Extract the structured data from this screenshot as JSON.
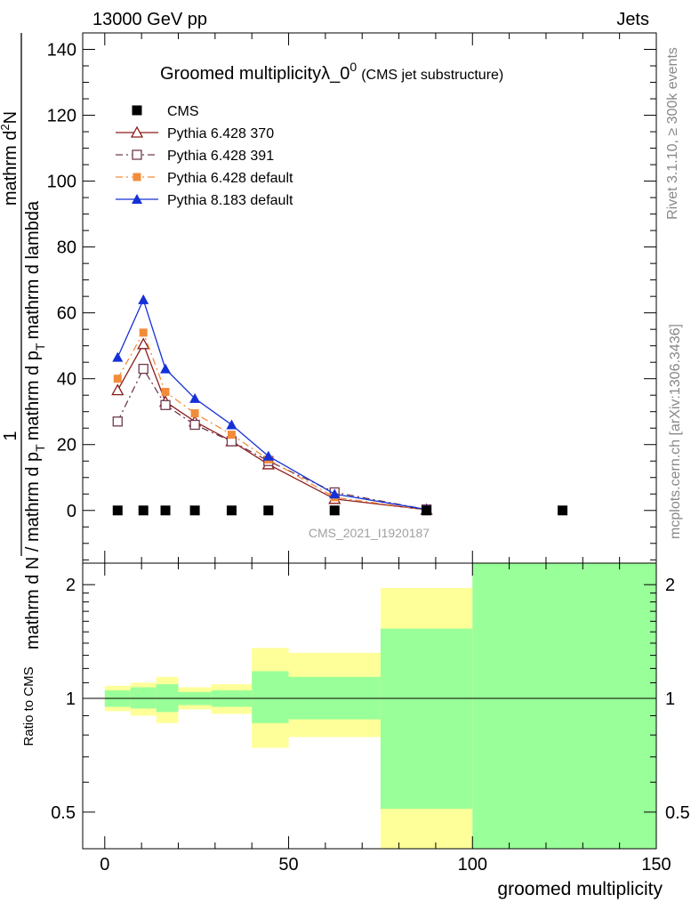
{
  "header": {
    "left": "13000 GeV pp",
    "right": "Jets"
  },
  "side_labels": {
    "top": "Rivet 3.1.10, ≥ 300k events",
    "bottom": "mcplots.cern.ch [arXiv:1306.3436]"
  },
  "chart_data": [
    {
      "type": "line",
      "title_main": "Groomed multiplicity",
      "title_lambda": "λ_0",
      "title_sup": "0",
      "title_paren": "(CMS jet substructure)",
      "ylabel": "1 / mathrm d N / mathrm d p_T mathrm d^2N / mathrm d p_T mathrm d lambda",
      "ylabel_numer_left": "1",
      "ylabel_left": "mathrm d N / mathrm d p",
      "ylabel_left_sub": "T",
      "ylabel_right_a": "mathrm d",
      "ylabel_right_sup": "2",
      "ylabel_right_b": "N",
      "ylabel_right_c": "mathrm d p",
      "ylabel_right_sub": "T",
      "ylabel_right_d": "mathrm d lambda",
      "xlim": [
        -6,
        150
      ],
      "ylim": [
        -16,
        145
      ],
      "yticks": [
        0,
        20,
        40,
        60,
        80,
        100,
        120,
        140
      ],
      "watermark": "CMS_2021_I1920187",
      "legend_position": "top-left",
      "x": [
        3.5,
        10.5,
        16.5,
        24.5,
        34.5,
        44.5,
        62.5,
        87.5,
        124.5
      ],
      "series": [
        {
          "name": "CMS",
          "color": "#000000",
          "marker": "square-filled",
          "line": "none",
          "x": [
            3.5,
            10.5,
            16.5,
            24.5,
            34.5,
            44.5,
            62.5,
            87.5,
            124.5
          ],
          "values": [
            0,
            0,
            0,
            0,
            0,
            0,
            0,
            0,
            0
          ]
        },
        {
          "name": "Pythia 6.428 370",
          "color": "#8b1a1a",
          "marker": "triangle-open",
          "line": "solid",
          "x": [
            3.5,
            10.5,
            16.5,
            24.5,
            34.5,
            44.5,
            62.5,
            87.5
          ],
          "values": [
            36.5,
            50.5,
            33,
            27,
            21,
            14,
            3.5,
            0.2
          ]
        },
        {
          "name": "Pythia 6.428 391",
          "color": "#6e3a4e",
          "marker": "square-open",
          "line": "dashdot",
          "x": [
            3.5,
            10.5,
            16.5,
            24.5,
            34.5,
            44.5,
            62.5,
            87.5
          ],
          "values": [
            27,
            43,
            32,
            26,
            21,
            15,
            5.5,
            0.3
          ]
        },
        {
          "name": "Pythia 6.428 default",
          "color": "#f28c3a",
          "marker": "square-filled",
          "line": "dashdot",
          "x": [
            3.5,
            10.5,
            16.5,
            24.5,
            34.5,
            44.5,
            62.5,
            87.5
          ],
          "values": [
            40,
            54,
            36,
            29.5,
            23,
            15.5,
            4,
            0.2
          ]
        },
        {
          "name": "Pythia 8.183 default",
          "color": "#1530d6",
          "marker": "triangle-filled",
          "line": "solid",
          "x": [
            3.5,
            10.5,
            16.5,
            24.5,
            34.5,
            44.5,
            62.5,
            87.5
          ],
          "values": [
            46.5,
            64,
            43,
            34,
            26,
            16.5,
            5,
            0.3
          ]
        }
      ]
    },
    {
      "type": "area",
      "ylabel": "Ratio to CMS",
      "xlabel": "groomed multiplicity",
      "xlim": [
        -6,
        150
      ],
      "xticks": [
        0,
        50,
        100,
        150
      ],
      "yticks": [
        0.5,
        1,
        2
      ],
      "yticklabels": [
        "0.5",
        "1",
        "2"
      ],
      "yscale": "log",
      "ylim": [
        0.4,
        2.28
      ],
      "reference_line": 1,
      "bins": [
        {
          "lo": 0,
          "hi": 7,
          "yellow": [
            0.925,
            1.08
          ],
          "green": [
            0.95,
            1.05
          ]
        },
        {
          "lo": 7,
          "hi": 14,
          "yellow": [
            0.9,
            1.1
          ],
          "green": [
            0.94,
            1.07
          ]
        },
        {
          "lo": 14,
          "hi": 20,
          "yellow": [
            0.86,
            1.14
          ],
          "green": [
            0.92,
            1.09
          ]
        },
        {
          "lo": 20,
          "hi": 29,
          "yellow": [
            0.935,
            1.07
          ],
          "green": [
            0.96,
            1.04
          ]
        },
        {
          "lo": 29,
          "hi": 40,
          "yellow": [
            0.91,
            1.09
          ],
          "green": [
            0.95,
            1.05
          ]
        },
        {
          "lo": 40,
          "hi": 50,
          "yellow": [
            0.74,
            1.36
          ],
          "green": [
            0.86,
            1.18
          ]
        },
        {
          "lo": 50,
          "hi": 75,
          "yellow": [
            0.79,
            1.32
          ],
          "green": [
            0.88,
            1.14
          ]
        },
        {
          "lo": 75,
          "hi": 100,
          "yellow": [
            0.35,
            1.96
          ],
          "green": [
            0.51,
            1.53
          ]
        },
        {
          "lo": 100,
          "hi": 150,
          "yellow": [
            0.35,
            2.3
          ],
          "green": [
            0.35,
            2.3
          ]
        }
      ],
      "colors": {
        "yellow": "#ffff99",
        "green": "#99ff99"
      }
    }
  ]
}
